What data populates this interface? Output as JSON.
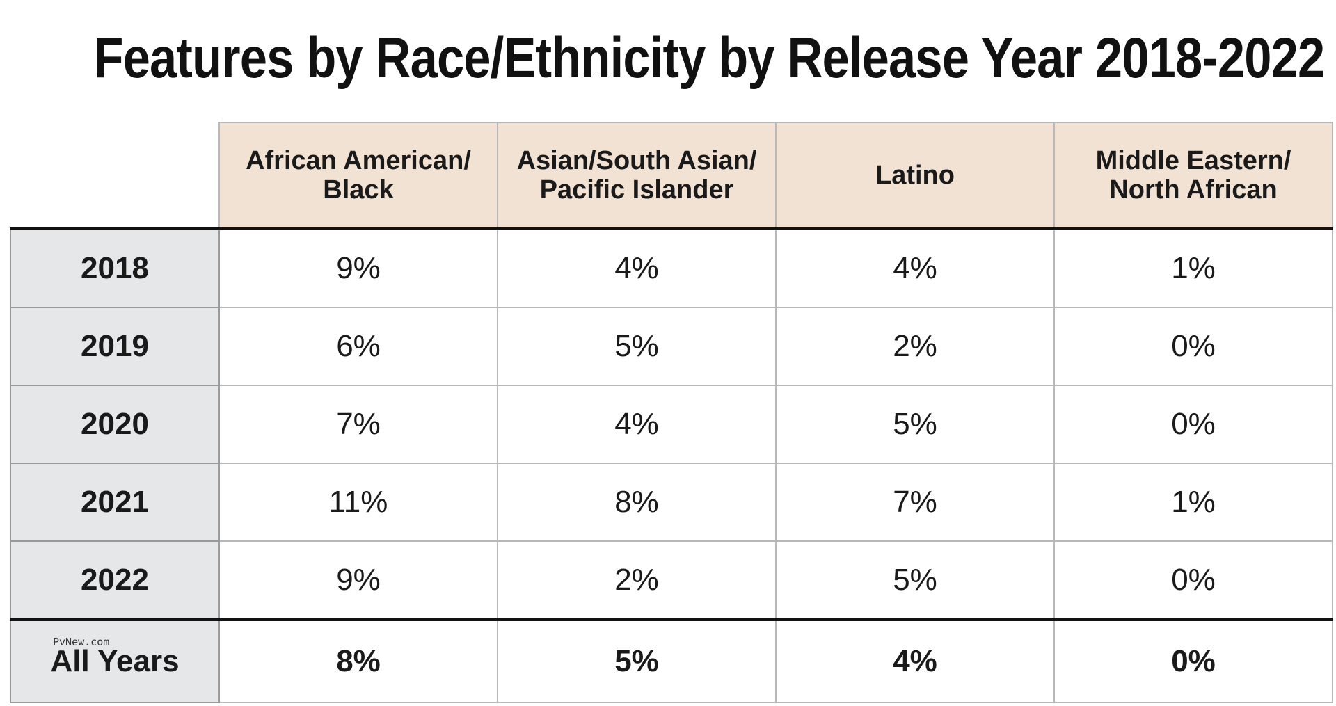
{
  "chart_data": {
    "type": "table",
    "title": "Features by Race/Ethnicity by Release Year 2018-2022",
    "columns": [
      "African American/\nBlack",
      "Asian/South Asian/\nPacific Islander",
      "Latino",
      "Middle Eastern/\nNorth African"
    ],
    "rows": [
      {
        "label": "2018",
        "values": [
          "9%",
          "4%",
          "4%",
          "1%"
        ]
      },
      {
        "label": "2019",
        "values": [
          "6%",
          "5%",
          "2%",
          "0%"
        ]
      },
      {
        "label": "2020",
        "values": [
          "7%",
          "4%",
          "5%",
          "0%"
        ]
      },
      {
        "label": "2021",
        "values": [
          "11%",
          "8%",
          "7%",
          "1%"
        ]
      },
      {
        "label": "2022",
        "values": [
          "9%",
          "2%",
          "5%",
          "0%"
        ]
      }
    ],
    "total_row": {
      "label": "All Years",
      "values": [
        "8%",
        "5%",
        "4%",
        "0%"
      ]
    }
  },
  "watermark": "PvNew.com",
  "colors": {
    "header_bg": "#f2e2d4",
    "row_label_bg": "#e6e7e9",
    "rule": "#111111"
  }
}
